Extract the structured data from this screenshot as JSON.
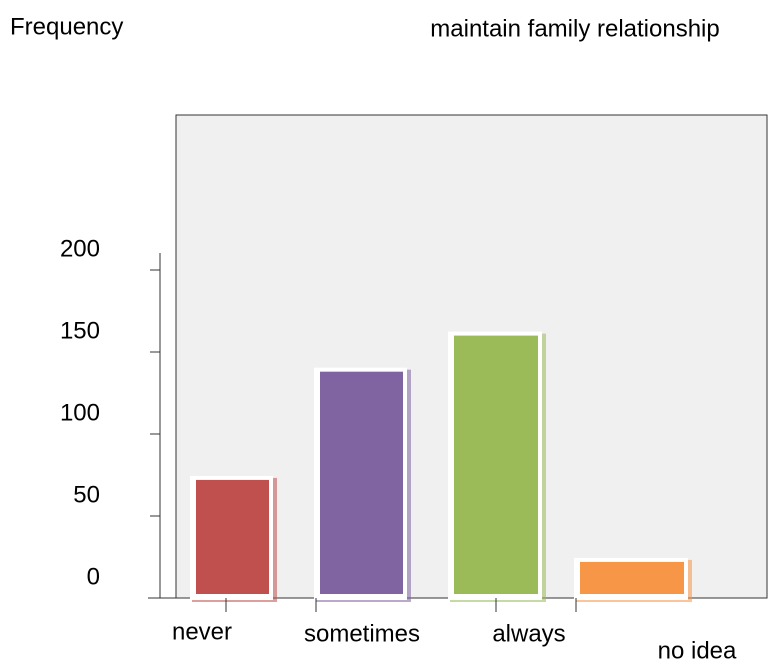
{
  "chart_data": {
    "type": "bar",
    "title": "maintain family relationship",
    "y_label": "Frequency",
    "categories": [
      "never",
      "sometimes",
      "always",
      "no idea"
    ],
    "values": [
      72,
      138,
      160,
      22
    ],
    "colors": [
      "#c0504d",
      "#8064a2",
      "#9bbb59",
      "#f79646"
    ],
    "ylim": [
      0,
      200
    ],
    "yticks": [
      0,
      50,
      100,
      150,
      200
    ]
  }
}
